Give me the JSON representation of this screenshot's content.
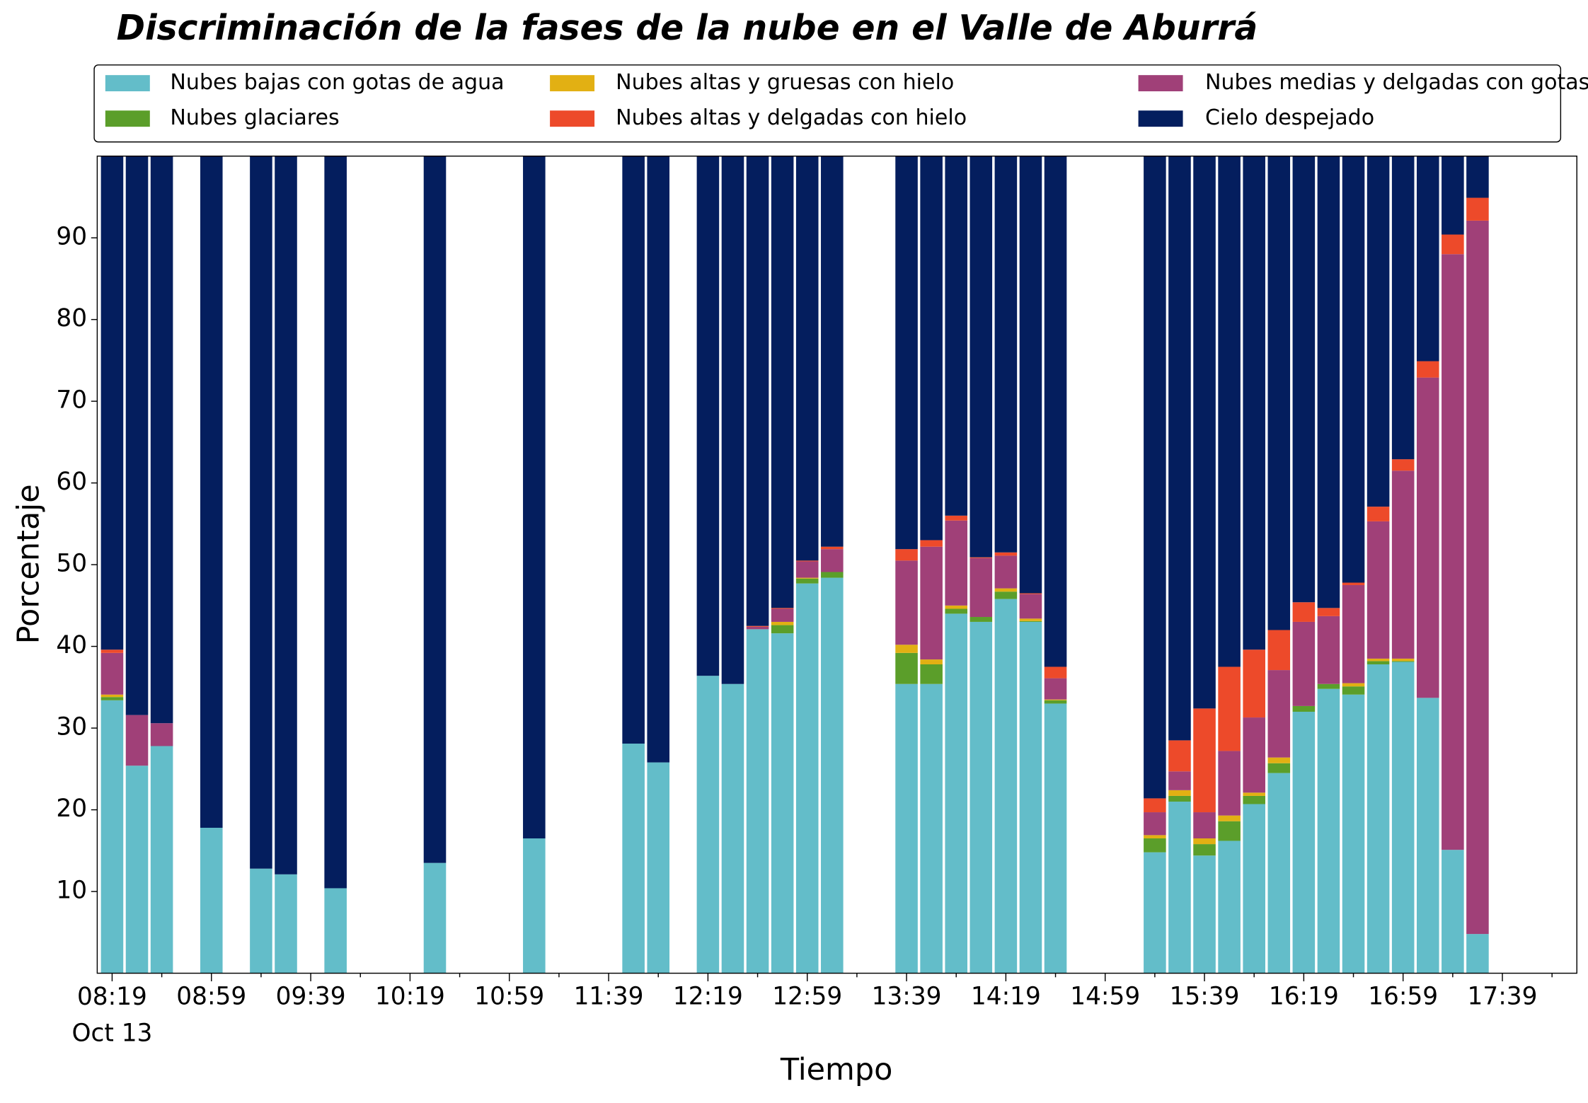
{
  "chart_data": {
    "type": "stacked_bar",
    "title": "Discriminación de la fases de la nube en el Valle de Aburrá",
    "x_label": "Tiempo",
    "y_label": "Porcentaje",
    "x": [
      "08:19",
      "08:29",
      "08:39",
      "08:59",
      "09:19",
      "09:29",
      "09:49",
      "10:29",
      "11:09",
      "11:49",
      "11:59",
      "12:19",
      "12:29",
      "12:39",
      "12:49",
      "12:59",
      "13:09",
      "13:39",
      "13:49",
      "13:59",
      "14:09",
      "14:19",
      "14:29",
      "14:39",
      "15:19",
      "15:29",
      "15:39",
      "15:49",
      "15:59",
      "16:09",
      "16:19",
      "16:29",
      "16:39",
      "16:49",
      "16:59",
      "17:09",
      "17:19",
      "17:29"
    ],
    "series": [
      {
        "name": "Nubes bajas con gotas de agua",
        "color": "#63bdc9",
        "values": [
          33.4,
          25.4,
          27.8,
          17.8,
          12.8,
          12.1,
          10.4,
          13.5,
          16.5,
          28.1,
          25.8,
          36.4,
          35.4,
          42.1,
          41.6,
          47.7,
          48.4,
          35.4,
          35.4,
          44.0,
          43.0,
          45.8,
          43.0,
          33.0,
          14.8,
          21.0,
          14.4,
          16.2,
          20.7,
          24.5,
          32.0,
          34.8,
          34.1,
          37.8,
          38.1,
          33.7,
          15.1,
          4.8
        ]
      },
      {
        "name": "Nubes glaciares",
        "color": "#5b9e2a",
        "values": [
          0.4,
          0,
          0,
          0,
          0,
          0,
          0,
          0,
          0,
          0,
          0,
          0,
          0,
          0,
          1.0,
          0.6,
          0.7,
          3.8,
          2.4,
          0.6,
          0.6,
          0.9,
          0.1,
          0.4,
          1.7,
          0.7,
          1.4,
          2.4,
          1.0,
          1.2,
          0.7,
          0.6,
          1.0,
          0.4,
          0.1,
          0,
          0,
          0
        ]
      },
      {
        "name": "Nubes altas y gruesas con hielo",
        "color": "#e2b013",
        "values": [
          0.3,
          0,
          0,
          0,
          0,
          0,
          0,
          0,
          0,
          0,
          0,
          0,
          0,
          0,
          0.4,
          0.1,
          0,
          1.0,
          0.6,
          0.4,
          0,
          0.4,
          0.3,
          0.1,
          0.4,
          0.7,
          0.7,
          0.7,
          0.4,
          0.7,
          0,
          0,
          0.4,
          0.3,
          0.3,
          0,
          0,
          0
        ]
      },
      {
        "name": "Nubes altas y delgadas con hielo",
        "color": "#ed4a2a",
        "values": [
          0.4,
          0,
          0,
          0,
          0,
          0,
          0,
          0,
          0,
          0,
          0,
          0,
          0,
          0.1,
          0.1,
          0.1,
          0.3,
          1.4,
          0.8,
          0.6,
          0.1,
          0.4,
          0.1,
          1.4,
          1.7,
          3.8,
          12.7,
          10.3,
          8.3,
          4.9,
          2.4,
          1.0,
          0.3,
          1.8,
          1.4,
          2.0,
          2.4,
          2.8
        ]
      },
      {
        "name": "Nubes medias y delgadas con gotas de agua",
        "color": "#a04078",
        "values": [
          5.1,
          6.2,
          2.8,
          0,
          0,
          0,
          0,
          0,
          0,
          0,
          0,
          0,
          0,
          0.3,
          1.6,
          2.0,
          2.8,
          10.3,
          13.8,
          10.4,
          7.2,
          4.0,
          3.0,
          2.6,
          2.8,
          2.3,
          3.2,
          7.9,
          9.2,
          10.7,
          10.3,
          8.3,
          12.0,
          16.8,
          23.0,
          39.2,
          72.9,
          87.3
        ]
      },
      {
        "name": "Cielo despejado",
        "color": "#041e5e",
        "values": [
          60.4,
          68.4,
          69.4,
          82.2,
          87.2,
          87.9,
          89.6,
          86.5,
          83.5,
          71.9,
          74.2,
          63.6,
          64.6,
          57.5,
          55.3,
          49.5,
          47.8,
          48.1,
          47.0,
          44.0,
          49.1,
          48.5,
          53.5,
          62.5,
          78.6,
          71.5,
          67.6,
          62.5,
          60.4,
          58.0,
          54.6,
          55.3,
          52.2,
          42.9,
          37.1,
          25.1,
          9.6,
          5.1
        ]
      }
    ],
    "stack_order": [
      0,
      1,
      2,
      4,
      3,
      5
    ],
    "xlim": [
      "08:13",
      "18:09"
    ],
    "xticks": [
      {
        "value": "08:19",
        "label": "08:19\nOct 13"
      },
      "08:59",
      "09:39",
      "10:19",
      "10:59",
      "11:39",
      "12:19",
      "12:59",
      "13:39",
      "14:19",
      "14:59",
      "15:39",
      "16:19",
      "16:59",
      "17:39"
    ],
    "xminorticks": [
      "08:39",
      "09:19",
      "09:59",
      "10:39",
      "11:19",
      "11:59",
      "12:39",
      "13:19",
      "13:59",
      "14:39",
      "15:19",
      "15:59",
      "16:39",
      "17:19",
      "17:59"
    ],
    "ylim": [
      0,
      100
    ],
    "yticks": [
      10,
      20,
      30,
      40,
      50,
      60,
      70,
      80,
      90
    ],
    "grid": false,
    "legend": "top"
  }
}
